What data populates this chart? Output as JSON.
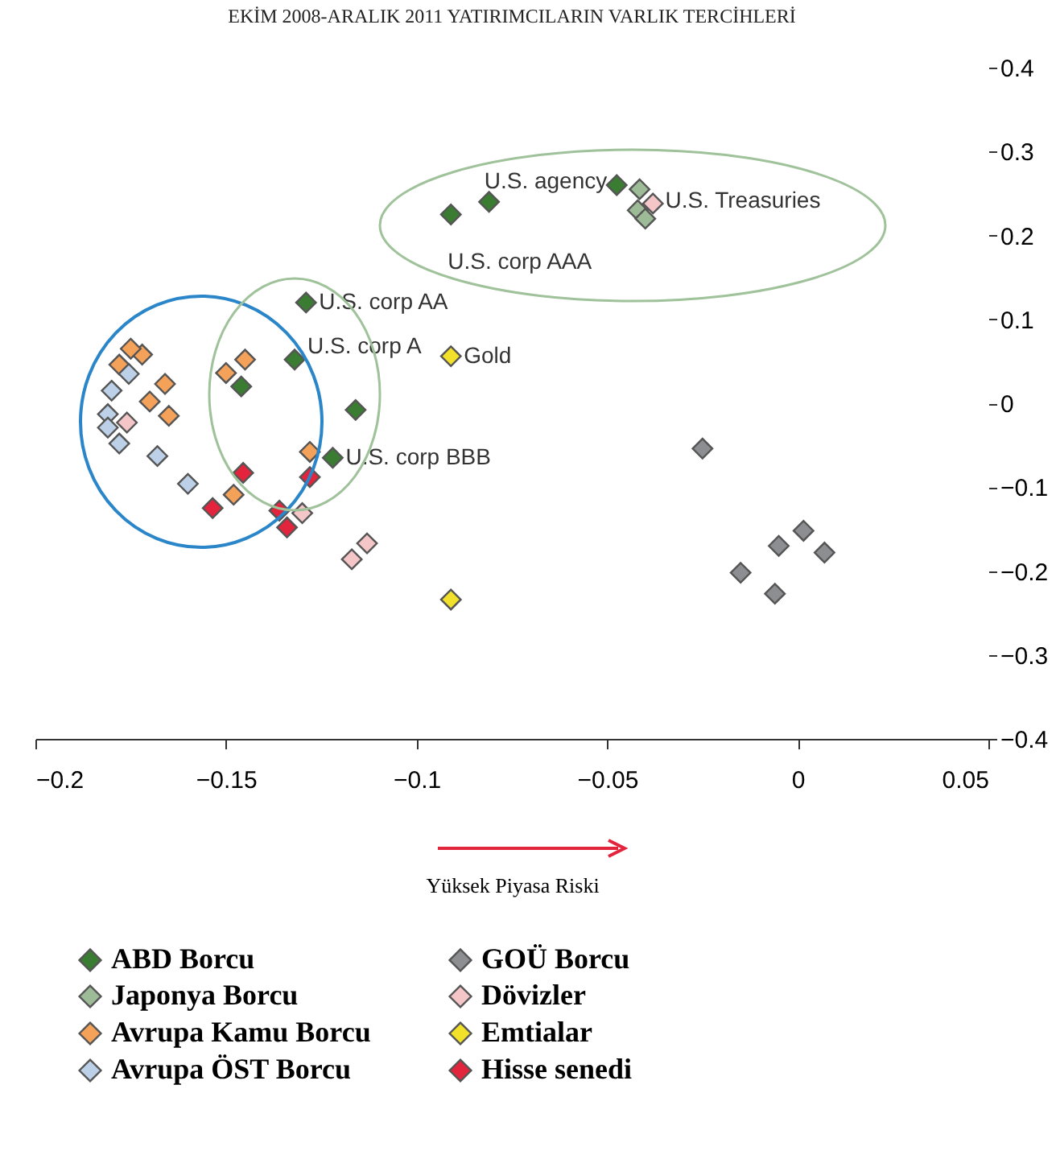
{
  "chart_data": {
    "type": "scatter",
    "title": "EKİM 2008-ARALIK 2011 YATIRIMCILARIN VARLIK TERCİHLERİ",
    "xlabel": "Yüksek Piyasa Riski",
    "xlim": [
      -0.2,
      0.05
    ],
    "xticks": [
      -0.2,
      -0.15,
      -0.1,
      -0.05,
      0,
      0.05
    ],
    "ylim": [
      -0.4,
      0.4
    ],
    "yticks": [
      -0.4,
      -0.3,
      -0.2,
      -0.1,
      0,
      0.1,
      0.2,
      0.3,
      0.4
    ],
    "grid": false,
    "legend": "bottom",
    "marker": "diamond",
    "series": [
      {
        "name": "ABD Borcu",
        "color": "#3a7d32",
        "x": [
          -0.0475,
          -0.081,
          -0.091,
          -0.129,
          -0.132,
          -0.146,
          -0.116,
          -0.122
        ],
        "values": [
          0.26,
          0.24,
          0.225,
          0.12,
          0.052,
          0.02,
          -0.008,
          -0.065
        ]
      },
      {
        "name": "Japonya Borcu",
        "color": "#9dbb96",
        "x": [
          -0.042,
          -0.0415,
          -0.04
        ],
        "values": [
          0.23,
          0.255,
          0.22
        ]
      },
      {
        "name": "Avrupa Kamu Borcu",
        "color": "#f4a15a",
        "x": [
          -0.172,
          -0.178,
          -0.175,
          -0.166,
          -0.17,
          -0.165,
          -0.145,
          -0.15,
          -0.128,
          -0.148
        ],
        "values": [
          0.058,
          0.046,
          0.065,
          0.023,
          0.002,
          -0.015,
          0.052,
          0.036,
          -0.058,
          -0.109
        ]
      },
      {
        "name": "Avrupa ÖST Borcu",
        "color": "#bcd0e8",
        "x": [
          -0.1755,
          -0.18,
          -0.181,
          -0.181,
          -0.178,
          -0.168,
          -0.16
        ],
        "values": [
          0.035,
          0.015,
          -0.013,
          -0.029,
          -0.048,
          -0.063,
          -0.096
        ]
      },
      {
        "name": "GOÜ Borcu",
        "color": "#8c8e91",
        "x": [
          -0.025,
          -0.015,
          -0.005,
          0.0015,
          0.007,
          -0.006
        ],
        "values": [
          -0.054,
          -0.202,
          -0.17,
          -0.152,
          -0.178,
          -0.227
        ]
      },
      {
        "name": "Dövizler",
        "color": "#f5c6c8",
        "x": [
          -0.176,
          -0.13,
          -0.113,
          -0.117,
          -0.038
        ],
        "values": [
          -0.023,
          -0.131,
          -0.167,
          -0.186,
          0.238
        ]
      },
      {
        "name": "Emtialar",
        "color": "#f2e12a",
        "x": [
          -0.091,
          -0.091
        ],
        "values": [
          0.056,
          -0.234
        ]
      },
      {
        "name": "Hisse senedi",
        "color": "#e2253c",
        "x": [
          -0.1455,
          -0.1535,
          -0.128,
          -0.136,
          -0.134
        ],
        "values": [
          -0.083,
          -0.125,
          -0.088,
          -0.128,
          -0.148
        ]
      }
    ],
    "annotations": [
      {
        "text": "U.S. agency",
        "x": -0.0475,
        "y": 0.26
      },
      {
        "text": "U.S. Treasuries",
        "x": -0.039,
        "y": 0.245
      },
      {
        "text": "U.S. corp AAA",
        "x": -0.091,
        "y": 0.225
      },
      {
        "text": "U.S. corp AA",
        "x": -0.129,
        "y": 0.12
      },
      {
        "text": "U.S. corp A",
        "x": -0.132,
        "y": 0.052
      },
      {
        "text": "Gold",
        "x": -0.091,
        "y": 0.056
      },
      {
        "text": "U.S. corp BBB",
        "x": -0.122,
        "y": -0.065
      }
    ]
  }
}
